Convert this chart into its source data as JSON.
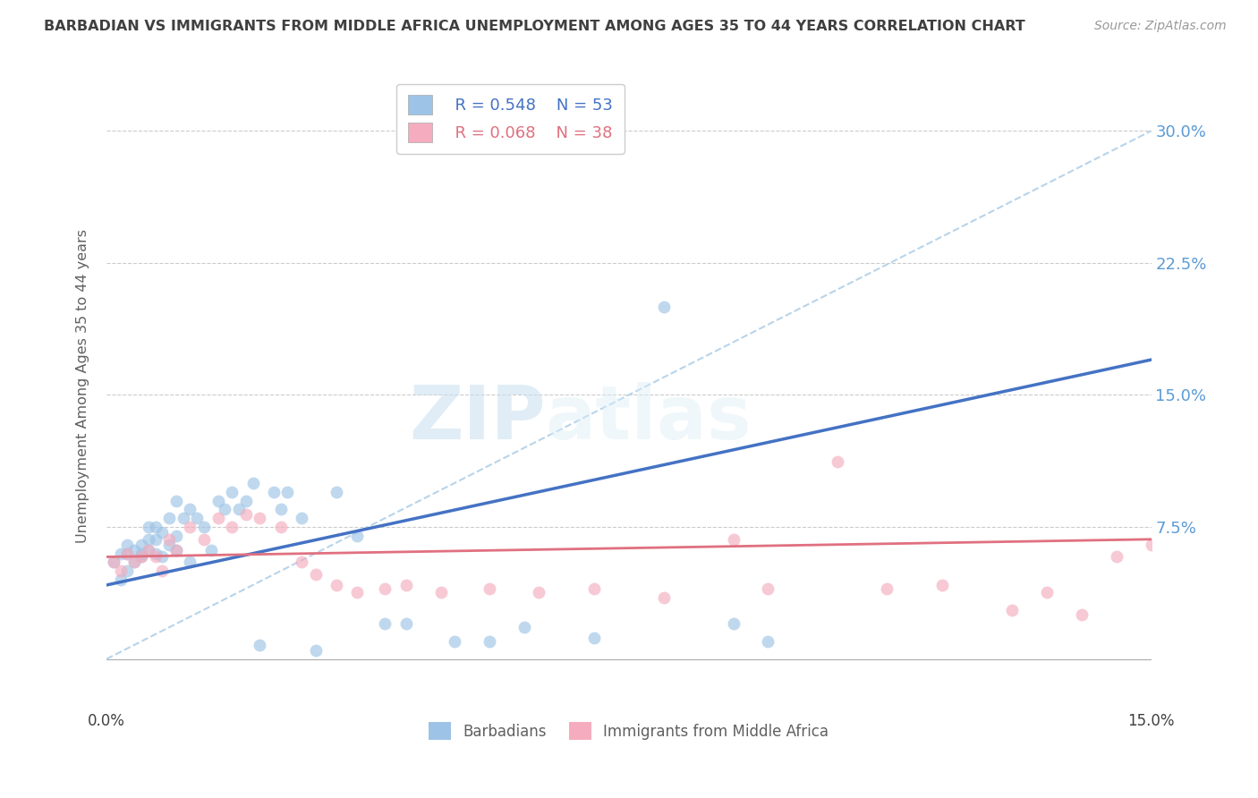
{
  "title": "BARBADIAN VS IMMIGRANTS FROM MIDDLE AFRICA UNEMPLOYMENT AMONG AGES 35 TO 44 YEARS CORRELATION CHART",
  "source": "Source: ZipAtlas.com",
  "ylabel": "Unemployment Among Ages 35 to 44 years",
  "xlim": [
    0.0,
    0.15
  ],
  "ylim": [
    -0.025,
    0.335
  ],
  "ytick_vals": [
    0.075,
    0.15,
    0.225,
    0.3
  ],
  "ytick_labels": [
    "7.5%",
    "15.0%",
    "22.5%",
    "30.0%"
  ],
  "xtick_vals": [
    0.0,
    0.025,
    0.05,
    0.075,
    0.1,
    0.125,
    0.15
  ],
  "xtick_labels": [
    "0.0%",
    "",
    "",
    "",
    "",
    "",
    "15.0%"
  ],
  "legend_R_blue": "0.548",
  "legend_N_blue": "53",
  "legend_R_pink": "0.068",
  "legend_N_pink": "38",
  "barbadian_x": [
    0.001,
    0.002,
    0.002,
    0.003,
    0.003,
    0.003,
    0.004,
    0.004,
    0.005,
    0.005,
    0.005,
    0.006,
    0.006,
    0.006,
    0.007,
    0.007,
    0.007,
    0.008,
    0.008,
    0.009,
    0.009,
    0.01,
    0.01,
    0.01,
    0.011,
    0.012,
    0.012,
    0.013,
    0.014,
    0.015,
    0.016,
    0.017,
    0.018,
    0.019,
    0.02,
    0.021,
    0.022,
    0.024,
    0.025,
    0.026,
    0.028,
    0.03,
    0.033,
    0.036,
    0.04,
    0.043,
    0.05,
    0.055,
    0.06,
    0.07,
    0.08,
    0.09,
    0.095
  ],
  "barbadian_y": [
    0.055,
    0.045,
    0.06,
    0.05,
    0.06,
    0.065,
    0.055,
    0.062,
    0.058,
    0.065,
    0.06,
    0.062,
    0.068,
    0.075,
    0.06,
    0.068,
    0.075,
    0.058,
    0.072,
    0.065,
    0.08,
    0.07,
    0.062,
    0.09,
    0.08,
    0.055,
    0.085,
    0.08,
    0.075,
    0.062,
    0.09,
    0.085,
    0.095,
    0.085,
    0.09,
    0.1,
    0.008,
    0.095,
    0.085,
    0.095,
    0.08,
    0.005,
    0.095,
    0.07,
    0.02,
    0.02,
    0.01,
    0.01,
    0.018,
    0.012,
    0.2,
    0.02,
    0.01
  ],
  "immigrant_x": [
    0.001,
    0.002,
    0.003,
    0.004,
    0.005,
    0.006,
    0.007,
    0.008,
    0.009,
    0.01,
    0.012,
    0.014,
    0.016,
    0.018,
    0.02,
    0.022,
    0.025,
    0.028,
    0.03,
    0.033,
    0.036,
    0.04,
    0.043,
    0.048,
    0.055,
    0.062,
    0.07,
    0.08,
    0.09,
    0.095,
    0.105,
    0.112,
    0.12,
    0.13,
    0.135,
    0.14,
    0.145,
    0.15
  ],
  "immigrant_y": [
    0.055,
    0.05,
    0.06,
    0.055,
    0.058,
    0.062,
    0.058,
    0.05,
    0.068,
    0.062,
    0.075,
    0.068,
    0.08,
    0.075,
    0.082,
    0.08,
    0.075,
    0.055,
    0.048,
    0.042,
    0.038,
    0.04,
    0.042,
    0.038,
    0.04,
    0.038,
    0.04,
    0.035,
    0.068,
    0.04,
    0.112,
    0.04,
    0.042,
    0.028,
    0.038,
    0.025,
    0.058,
    0.065
  ],
  "blue_line_x": [
    0.0,
    0.15
  ],
  "blue_line_y": [
    0.042,
    0.17
  ],
  "pink_line_x": [
    0.0,
    0.15
  ],
  "pink_line_y": [
    0.058,
    0.068
  ],
  "dashed_line_x": [
    0.0,
    0.15
  ],
  "dashed_line_y": [
    0.0,
    0.3
  ],
  "watermark_zip": "ZIP",
  "watermark_atlas": "atlas",
  "blue_color": "#4472c4",
  "pink_color": "#e07080",
  "dashed_color": "#b8d4ea",
  "dot_blue": "#9dc3e6",
  "dot_pink": "#f4acbe",
  "background_color": "#ffffff",
  "grid_color": "#cccccc",
  "title_color": "#404040",
  "axis_label_color": "#606060",
  "ytick_color": "#5b9bd5",
  "xtick_color": "#404040"
}
